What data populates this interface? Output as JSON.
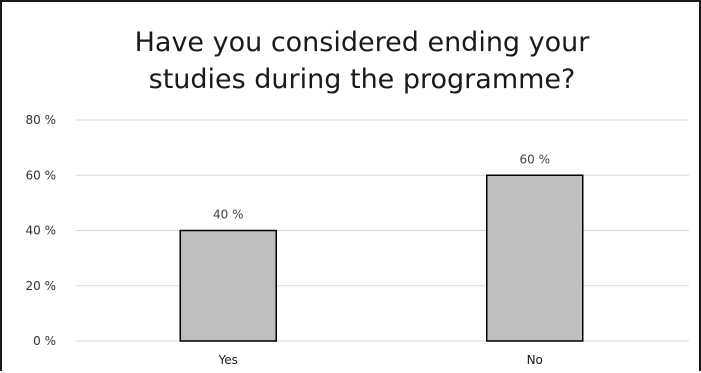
{
  "chart_data": {
    "type": "bar",
    "title_line1": "Have you considered ending your",
    "title_line2": "studies during the programme?",
    "categories": [
      "Yes",
      "No"
    ],
    "values": [
      40,
      60
    ],
    "data_labels": [
      "40 %",
      "60 %"
    ],
    "ytick_labels": [
      "0 %",
      "20 %",
      "40 %",
      "60 %",
      "80 %"
    ],
    "yticks": [
      0,
      20,
      40,
      60,
      80
    ],
    "ylim": [
      0,
      80
    ],
    "xlabel": "",
    "ylabel": "",
    "grid": true,
    "legend": "none",
    "bar_color": "#bfbfbf",
    "bar_edge_color": "#000000",
    "grid_color": "#d9d9d9"
  }
}
